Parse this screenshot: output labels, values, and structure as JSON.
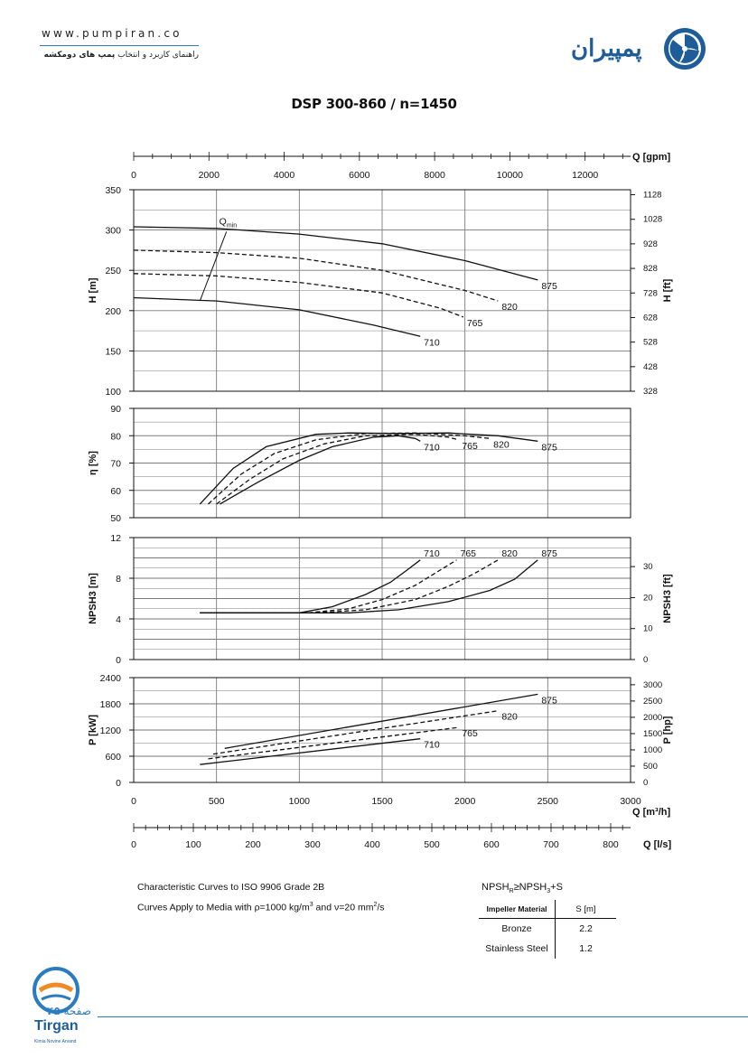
{
  "header": {
    "url": "www.pumpiran.co",
    "tagline_prefix": "راهنمای کاربرد و انتخاب",
    "tagline_bold": "پمپ های دومکشه",
    "logo_text": "پمپیران"
  },
  "title": "DSP 300-860 / n=1450",
  "colors": {
    "curve": "#111111",
    "grid": "#7a7a7a",
    "accent": "#2b7bbf"
  },
  "chart_data": [
    {
      "type": "line",
      "panel": "head",
      "ylabel": "H [m]",
      "ylabel2": "H [ft]",
      "ylim": [
        100,
        350
      ],
      "yticks": [
        100,
        150,
        200,
        250,
        300,
        350
      ],
      "yticks2": [
        328,
        428,
        528,
        628,
        728,
        828,
        928,
        1028,
        1128
      ],
      "qmin_label": "Q",
      "qmin_sub": "min",
      "series": [
        {
          "name": "875",
          "dash": false,
          "points": [
            [
              0,
              304
            ],
            [
              500,
              302
            ],
            [
              1000,
              295
            ],
            [
              1500,
              283
            ],
            [
              2000,
              262
            ],
            [
              2440,
              238
            ]
          ]
        },
        {
          "name": "820",
          "dash": true,
          "points": [
            [
              0,
              275
            ],
            [
              500,
              272
            ],
            [
              1000,
              265
            ],
            [
              1500,
              250
            ],
            [
              2000,
              225
            ],
            [
              2200,
              212
            ]
          ]
        },
        {
          "name": "765",
          "dash": true,
          "points": [
            [
              0,
              246
            ],
            [
              500,
              243
            ],
            [
              1000,
              235
            ],
            [
              1500,
              222
            ],
            [
              1850,
              203
            ],
            [
              1990,
              192
            ]
          ]
        },
        {
          "name": "710",
          "dash": false,
          "points": [
            [
              0,
              216
            ],
            [
              500,
              212
            ],
            [
              1000,
              201
            ],
            [
              1450,
              182
            ],
            [
              1730,
              168
            ]
          ]
        }
      ],
      "qmin_points": [
        [
          400,
          212
        ],
        [
          560,
          298
        ]
      ]
    },
    {
      "type": "line",
      "panel": "efficiency",
      "ylabel": "η [%]",
      "ylim": [
        50,
        90
      ],
      "yticks": [
        50,
        60,
        70,
        80,
        90
      ],
      "series": [
        {
          "name": "875",
          "dash": false,
          "points": [
            [
              400,
              55
            ],
            [
              600,
              68
            ],
            [
              800,
              76
            ],
            [
              1100,
              80.5
            ],
            [
              1300,
              81
            ],
            [
              1600,
              80.8
            ],
            [
              1900,
              81
            ],
            [
              2200,
              80
            ],
            [
              2440,
              78
            ]
          ]
        },
        {
          "name": "820",
          "dash": true,
          "points": [
            [
              450,
              55
            ],
            [
              650,
              66
            ],
            [
              850,
              73.5
            ],
            [
              1100,
              78.5
            ],
            [
              1400,
              80.8
            ],
            [
              1700,
              81
            ],
            [
              2000,
              80
            ],
            [
              2150,
              79
            ]
          ]
        },
        {
          "name": "765",
          "dash": true,
          "points": [
            [
              500,
              55
            ],
            [
              700,
              64
            ],
            [
              900,
              71.5
            ],
            [
              1150,
              77
            ],
            [
              1400,
              80
            ],
            [
              1700,
              80.5
            ],
            [
              1900,
              79.5
            ],
            [
              1960,
              78.5
            ]
          ]
        },
        {
          "name": "710",
          "dash": false,
          "points": [
            [
              520,
              55
            ],
            [
              750,
              63
            ],
            [
              1000,
              71
            ],
            [
              1200,
              76
            ],
            [
              1450,
              79.5
            ],
            [
              1600,
              80
            ],
            [
              1700,
              79
            ],
            [
              1730,
              78
            ]
          ]
        }
      ]
    },
    {
      "type": "line",
      "panel": "npsh",
      "ylabel": "NPSH3 [m]",
      "ylabel2": "NPSH3 [ft]",
      "ylim": [
        0,
        12
      ],
      "yticks": [
        0,
        4,
        8,
        12
      ],
      "yticks2": [
        0,
        10,
        20,
        30
      ],
      "series": [
        {
          "name": "875",
          "dash": false,
          "points": [
            [
              400,
              4.6
            ],
            [
              1000,
              4.6
            ],
            [
              1300,
              4.6
            ],
            [
              1600,
              4.9
            ],
            [
              1900,
              5.7
            ],
            [
              2150,
              6.8
            ],
            [
              2300,
              7.9
            ],
            [
              2440,
              9.8
            ]
          ]
        },
        {
          "name": "820",
          "dash": true,
          "points": [
            [
              400,
              4.6
            ],
            [
              1100,
              4.6
            ],
            [
              1400,
              4.9
            ],
            [
              1700,
              5.9
            ],
            [
              1900,
              7.2
            ],
            [
              2050,
              8.4
            ],
            [
              2200,
              9.8
            ]
          ]
        },
        {
          "name": "765",
          "dash": true,
          "points": [
            [
              400,
              4.6
            ],
            [
              1050,
              4.6
            ],
            [
              1300,
              5.0
            ],
            [
              1500,
              5.9
            ],
            [
              1700,
              7.3
            ],
            [
              1850,
              8.8
            ],
            [
              1950,
              9.8
            ]
          ]
        },
        {
          "name": "710",
          "dash": false,
          "points": [
            [
              400,
              4.6
            ],
            [
              1000,
              4.6
            ],
            [
              1200,
              5.2
            ],
            [
              1400,
              6.4
            ],
            [
              1550,
              7.6
            ],
            [
              1650,
              8.8
            ],
            [
              1730,
              9.8
            ]
          ]
        }
      ]
    },
    {
      "type": "line",
      "panel": "power",
      "ylabel": "P [kW]",
      "ylabel2": "P [hp]",
      "ylim": [
        0,
        2400
      ],
      "yticks": [
        0,
        600,
        1200,
        1800,
        2400
      ],
      "yticks2": [
        0,
        500,
        1000,
        1500,
        2000,
        2500,
        3000
      ],
      "xlabel": "Q [m³/h]",
      "xlim": [
        0,
        3000
      ],
      "xticks": [
        0,
        500,
        1000,
        1500,
        2000,
        2500,
        3000
      ],
      "xlabel_gpm": "Q [gpm]",
      "xticks_gpm": [
        0,
        2000,
        4000,
        6000,
        8000,
        10000,
        12000
      ],
      "xlabel_ls": "Q [l/s]",
      "xticks_ls": [
        0,
        100,
        200,
        300,
        400,
        500,
        600,
        700,
        800
      ],
      "series": [
        {
          "name": "875",
          "dash": false,
          "points": [
            [
              550,
              780
            ],
            [
              2440,
              2020
            ]
          ]
        },
        {
          "name": "820",
          "dash": true,
          "points": [
            [
              480,
              650
            ],
            [
              2200,
              1640
            ]
          ]
        },
        {
          "name": "765",
          "dash": true,
          "points": [
            [
              450,
              540
            ],
            [
              1960,
              1260
            ]
          ]
        },
        {
          "name": "710",
          "dash": false,
          "points": [
            [
              400,
              410
            ],
            [
              1730,
              1000
            ]
          ]
        }
      ]
    }
  ],
  "notes": {
    "line1": "Characteristic Curves to ISO 9906 Grade 2B",
    "line2_pre": "Curves Apply to Media with",
    "line2_rho": "ρ=1000 kg/m",
    "line2_rho_sup": "3",
    "line2_and": "and",
    "line2_nu": "ν=20 mm",
    "line2_nu_sup": "2",
    "line2_end": "/s"
  },
  "npsh_table": {
    "formula": "NPSH",
    "formula_sub_a": "R",
    "formula_mid": "≥NPSH",
    "formula_sub_b": "3",
    "formula_end": "+S",
    "col1": "Impeller Material",
    "col2": "S [m]",
    "rows": [
      {
        "material": "Bronze",
        "s": "2.2"
      },
      {
        "material": "Stainless Steel",
        "s": "1.2"
      }
    ]
  },
  "footer": {
    "page_word": "صفحه",
    "page_number": "۴۵",
    "brand": "Tirgan",
    "brand_sub": "Kimia Novine Arvand"
  }
}
